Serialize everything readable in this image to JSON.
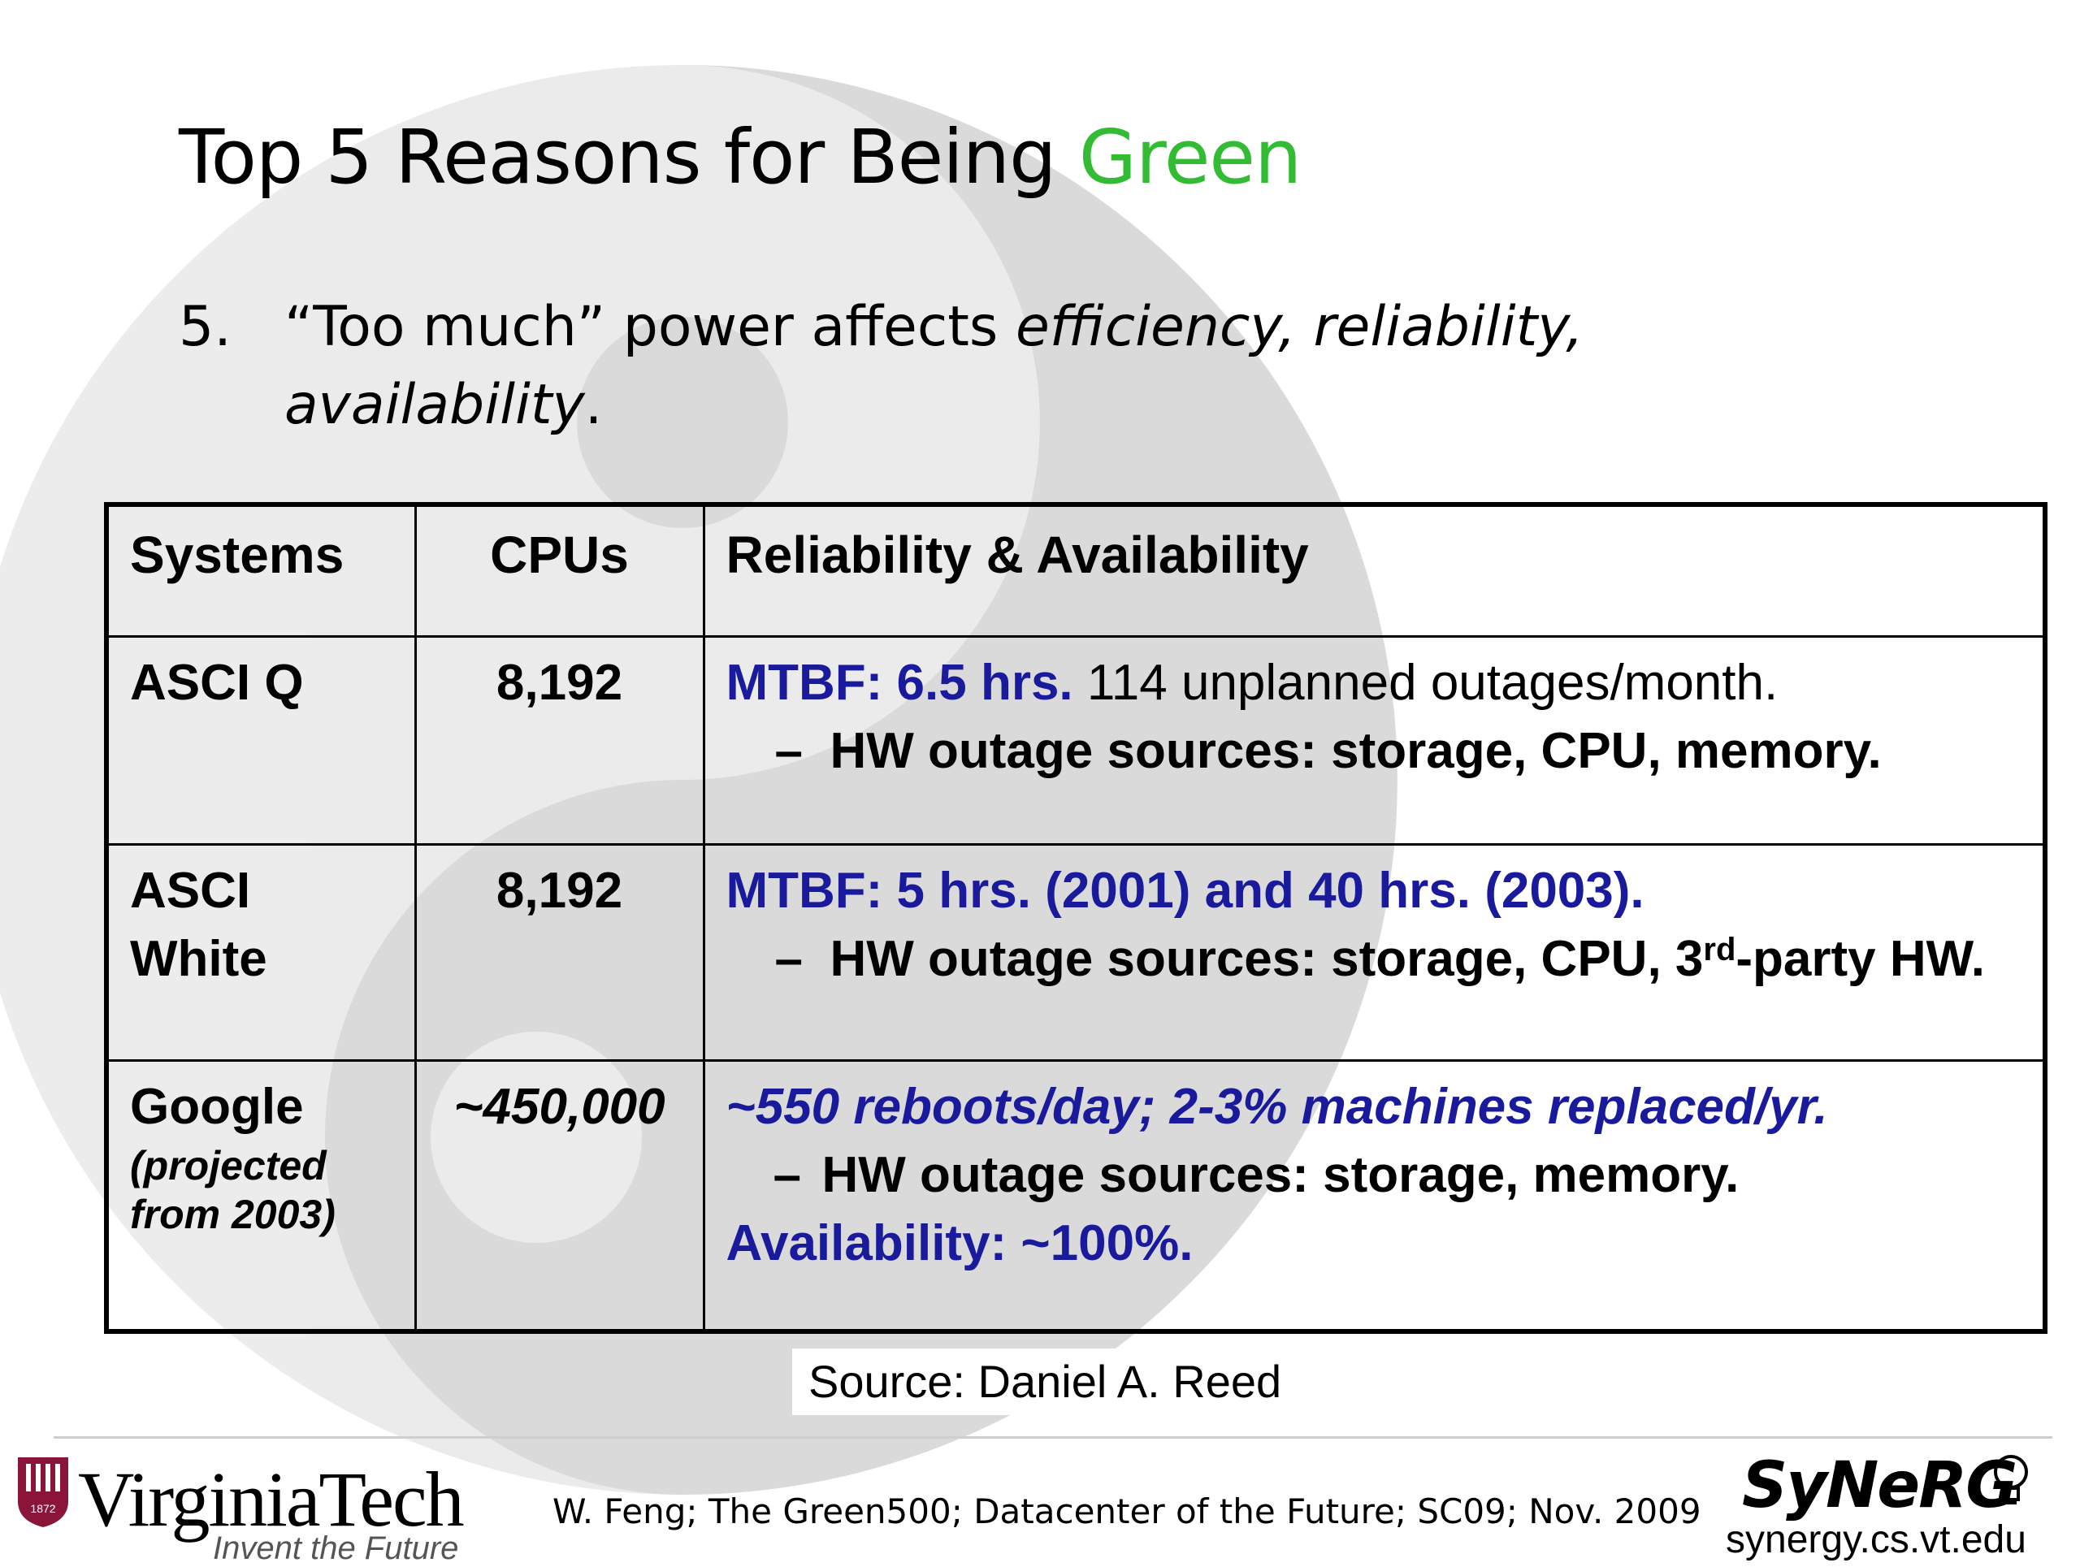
{
  "slide": {
    "title_prefix": "Top 5 Reasons for Being ",
    "title_highlight": "Green",
    "point": {
      "number": "5.",
      "text_plain": "“Too much” power affects ",
      "text_italic": "efficiency, reliability, availability",
      "text_end": "."
    }
  },
  "table": {
    "headers": {
      "systems": "Systems",
      "cpus": "CPUs",
      "reliability": "Reliability & Availability"
    },
    "rows": [
      {
        "system": "ASCI Q",
        "cpus": "8,192",
        "mtbf": "MTBF: 6.5 hrs.",
        "mtbf_rest": " 114 unplanned outages/month.",
        "dash": "–",
        "hw": "HW outage sources:  storage, CPU, memory."
      },
      {
        "system_line1": "ASCI",
        "system_line2": "White",
        "cpus": "8,192",
        "mtbf": "MTBF: 5 hrs. (2001) and 40 hrs. (2003).",
        "dash": "–",
        "hw_part1": "HW outage sources:  storage, CPU, 3",
        "hw_sup": "rd",
        "hw_part2": "-party HW."
      },
      {
        "system": "Google",
        "system_note": "(projected from 2003)",
        "cpus": "~450,000",
        "line1": "~550 reboots/day; 2-3% machines replaced/yr.",
        "dash": "–",
        "hw": "HW outage sources:  storage, memory.",
        "availability": "Availability: ~100%."
      }
    ]
  },
  "source": "Source: Daniel A. Reed",
  "footer": {
    "vt_name": "VirginiaTech",
    "vt_tagline": "Invent the Future",
    "vt_year": "1872",
    "citation": "W. Feng; The Green500; Datacenter of the Future; SC09; Nov. 2009",
    "synerg_logo": "SyNeRG",
    "synerg_url": "synergy.cs.vt.edu"
  },
  "colors": {
    "green": "#33bb33",
    "blue": "#1a1a9c",
    "watermark": "#d6d6d6"
  },
  "icons": {
    "background": "yin-yang-watermark",
    "vt": "vt-seal-icon",
    "synerg": "lightbulb-icon"
  }
}
